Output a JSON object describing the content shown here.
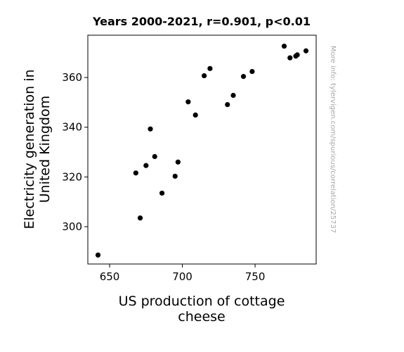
{
  "chart_data": {
    "type": "scatter",
    "title": "Years 2000-2021, r=0.901, p<0.01",
    "xlabel_lines": [
      "US production of cottage",
      "cheese"
    ],
    "ylabel_lines": [
      "Electricity generation in",
      "United Kingdom"
    ],
    "xlim": [
      635,
      792
    ],
    "ylim": [
      285,
      377
    ],
    "xticks": [
      650,
      700,
      750
    ],
    "yticks": [
      300,
      320,
      340,
      360
    ],
    "grid": false,
    "marker_color": "#000000",
    "points": [
      {
        "x": 642,
        "y": 288.6
      },
      {
        "x": 668,
        "y": 321.6
      },
      {
        "x": 671,
        "y": 303.5
      },
      {
        "x": 675,
        "y": 324.6
      },
      {
        "x": 678,
        "y": 339.3
      },
      {
        "x": 681,
        "y": 328.2
      },
      {
        "x": 686,
        "y": 313.5
      },
      {
        "x": 695,
        "y": 320.3
      },
      {
        "x": 697,
        "y": 326.0
      },
      {
        "x": 704,
        "y": 350.2
      },
      {
        "x": 709,
        "y": 344.9
      },
      {
        "x": 715,
        "y": 360.7
      },
      {
        "x": 719,
        "y": 363.6
      },
      {
        "x": 731,
        "y": 349.1
      },
      {
        "x": 735,
        "y": 352.8
      },
      {
        "x": 742,
        "y": 360.4
      },
      {
        "x": 748,
        "y": 362.4
      },
      {
        "x": 770,
        "y": 372.6
      },
      {
        "x": 774,
        "y": 367.9
      },
      {
        "x": 778,
        "y": 368.6
      },
      {
        "x": 779,
        "y": 369.1
      },
      {
        "x": 785,
        "y": 370.7
      }
    ]
  },
  "side_note": "More info: tylervigen.com/spurious/correlation/25737"
}
